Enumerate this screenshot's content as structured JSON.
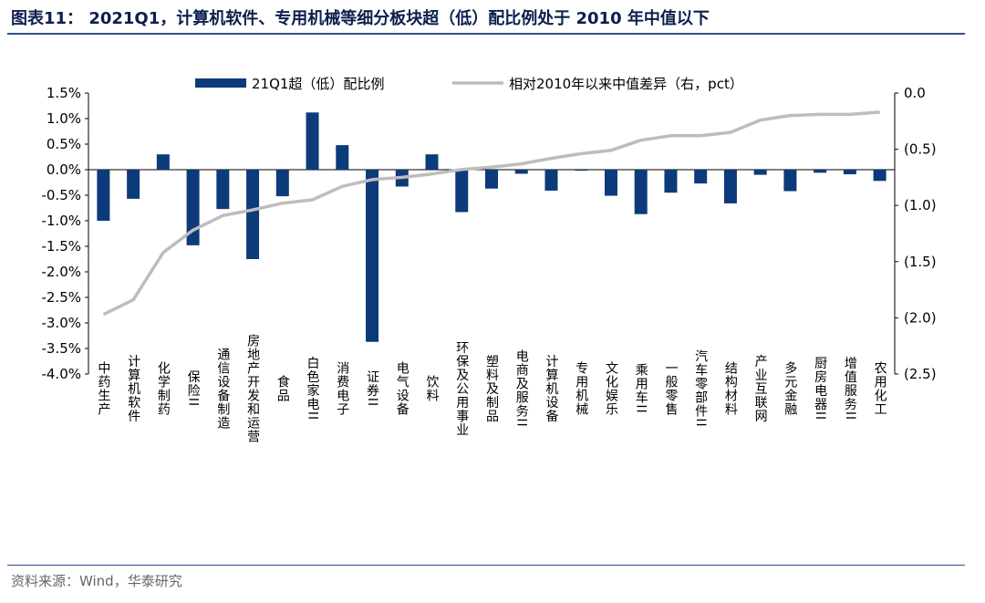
{
  "title": "图表11：  2021Q1，计算机软件、专用机械等细分板块超（低）配比例处于 2010 年中值以下",
  "source": "资料来源：Wind，华泰研究",
  "colors": {
    "bar": "#0d3a7a",
    "line": "#bdbdbd",
    "title": "#0b1f4d"
  },
  "chart_data": {
    "type": "bar",
    "categories": [
      "中药生产",
      "计算机软件",
      "化学制药",
      "保险II",
      "通信设备制造",
      "房地产开发和运营",
      "食品",
      "白色家电II",
      "消费电子",
      "证券II",
      "电气设备",
      "饮料",
      "环保及公用事业",
      "塑料及制品",
      "电商及服务II",
      "计算机设备",
      "专用机械",
      "文化娱乐",
      "乘用车II",
      "一般零售",
      "汽车零部件II",
      "结构材料",
      "产业互联网",
      "多元金融",
      "厨房电器II",
      "增值服务II",
      "农用化工"
    ],
    "series": [
      {
        "name": "21Q1超（低）配比例",
        "type": "bar",
        "axis": "left",
        "values": [
          -1.0,
          -0.57,
          0.3,
          -1.48,
          -0.77,
          -1.75,
          -0.52,
          1.12,
          0.48,
          -3.37,
          -0.33,
          0.3,
          -0.83,
          -0.37,
          -0.08,
          -0.41,
          -0.02,
          -0.51,
          -0.87,
          -0.45,
          -0.27,
          -0.66,
          -0.1,
          -0.42,
          -0.06,
          -0.09,
          -0.22
        ]
      },
      {
        "name": "相对2010年以来中值差异（右，pct）",
        "type": "line",
        "axis": "right",
        "values": [
          -1.97,
          -1.84,
          -1.42,
          -1.22,
          -1.09,
          -1.04,
          -0.98,
          -0.95,
          -0.83,
          -0.77,
          -0.75,
          -0.72,
          -0.68,
          -0.66,
          -0.63,
          -0.58,
          -0.54,
          -0.51,
          -0.42,
          -0.38,
          -0.38,
          -0.35,
          -0.24,
          -0.2,
          -0.19,
          -0.19,
          -0.17
        ]
      }
    ],
    "y_left": {
      "ylim": [
        -4.0,
        1.5
      ],
      "ticks": [
        "1.5%",
        "1.0%",
        "0.5%",
        "0.0%",
        "-0.5%",
        "-1.0%",
        "-1.5%",
        "-2.0%",
        "-2.5%",
        "-3.0%",
        "-3.5%",
        "-4.0%"
      ]
    },
    "y_right": {
      "ylim": [
        -2.5,
        0.0
      ],
      "ticks": [
        "0.0",
        "(0.5)",
        "(1.0)",
        "(1.5)",
        "(2.0)",
        "(2.5)"
      ]
    },
    "legend_position": "top",
    "grid": false
  }
}
